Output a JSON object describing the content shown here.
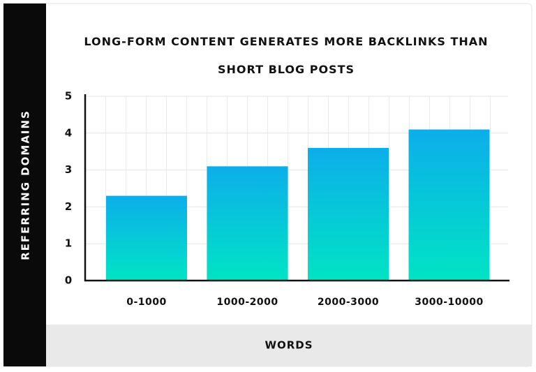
{
  "chart_data": {
    "type": "bar",
    "title": "LONG-FORM CONTENT GENERATES MORE BACKLINKS THAN SHORT BLOG POSTS",
    "x_label": "WORDS",
    "y_label": "REFERRING DOMAINS",
    "categories": [
      "0-1000",
      "1000-2000",
      "2000-3000",
      "3000-10000"
    ],
    "values": [
      2.3,
      3.1,
      3.6,
      4.1
    ],
    "gradient": [
      "#0caeea",
      "#00e4c4"
    ],
    "ylim": [
      0,
      5
    ],
    "yticks": [
      0,
      1,
      2,
      3,
      4,
      5
    ],
    "grid": true
  }
}
